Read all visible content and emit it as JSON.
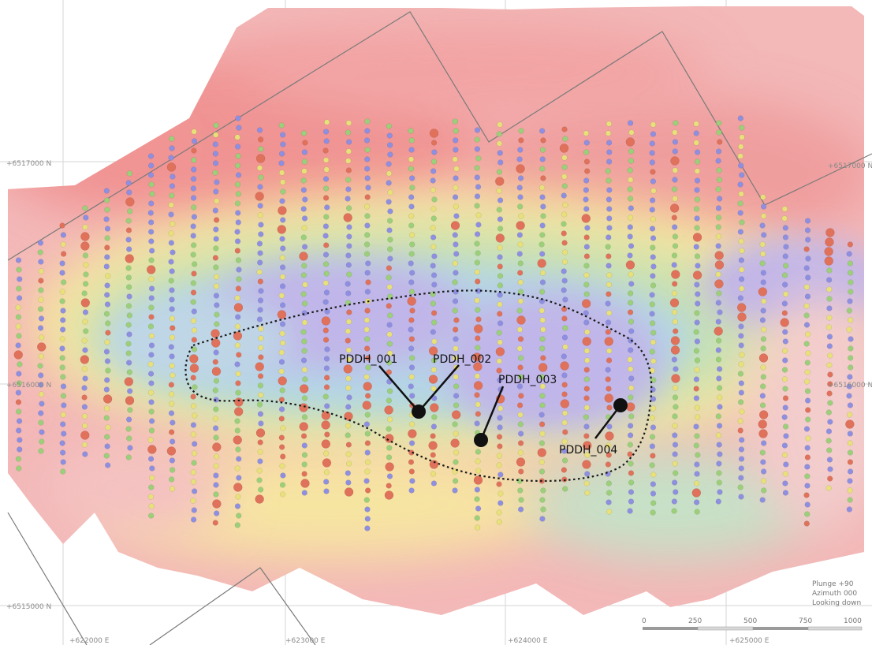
{
  "grid_labels": {
    "northings": [
      "+6517000 N",
      "+6516000 N",
      "+6515000 N"
    ],
    "eastings": [
      "+622000 E",
      "+623000 E",
      "+624000 E",
      "+625000 E"
    ]
  },
  "drillholes": [
    {
      "id": "PDDH_001"
    },
    {
      "id": "PDDH_002"
    },
    {
      "id": "PDDH_003"
    },
    {
      "id": "PDDH_004"
    }
  ],
  "view_info": {
    "plunge": "Plunge +90",
    "azimuth": "Azimuth 000",
    "looking": "Looking down"
  },
  "scale_bar": {
    "ticks": [
      "0",
      "250",
      "500",
      "750",
      "1000"
    ]
  },
  "colors": {
    "dot_blue": "#8e8fe0",
    "dot_green": "#9ccf7a",
    "dot_yellow": "#e8e07a",
    "dot_red": "#e0715a",
    "outline": "#222222",
    "grid": "#c8c8c8",
    "tenement": "#777777"
  }
}
